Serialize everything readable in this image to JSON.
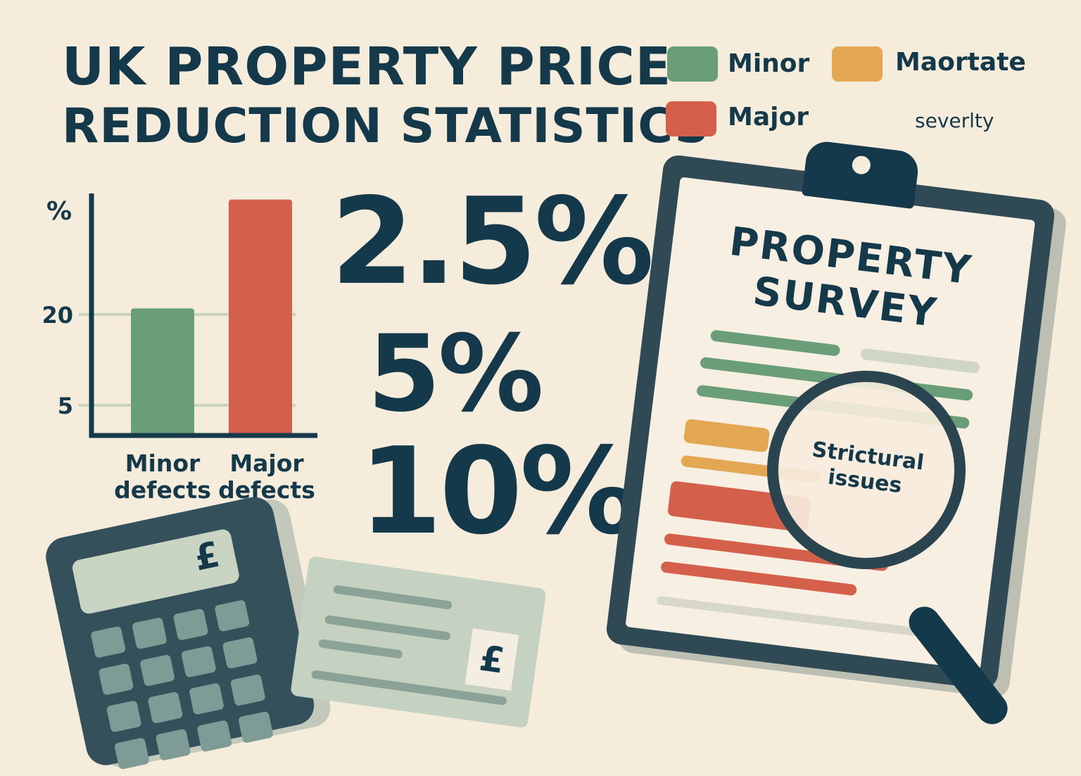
{
  "title": {
    "line1": "UK PROPERTY PRICE",
    "line2": "REDUCTION STATISTICS"
  },
  "legend": {
    "items": [
      {
        "label": "Minor",
        "color": "#6a9e78"
      },
      {
        "label": "Maortate",
        "color": "#e3a651"
      },
      {
        "label": "Major",
        "color": "#d45f4b"
      }
    ],
    "caption": "severlty"
  },
  "stats": [
    "2.5%",
    "5%",
    "10%"
  ],
  "chart_data": {
    "type": "bar",
    "categories": [
      "Minor defects",
      "Major defects"
    ],
    "values": [
      21,
      39
    ],
    "colors": [
      "#6a9e78",
      "#d45f4b"
    ],
    "ylabel": "%",
    "yticks": [
      5,
      20
    ],
    "ylim": [
      0,
      40
    ],
    "grid": false
  },
  "survey": {
    "title_line1": "PROPERTY",
    "title_line2": "SURVEY",
    "lens_line1": "Strictural",
    "lens_line2": "issues"
  },
  "calculator": {
    "symbol": "£",
    "icon": "calculator-icon"
  },
  "cheque": {
    "symbol": "£",
    "icon": "cheque-icon"
  }
}
